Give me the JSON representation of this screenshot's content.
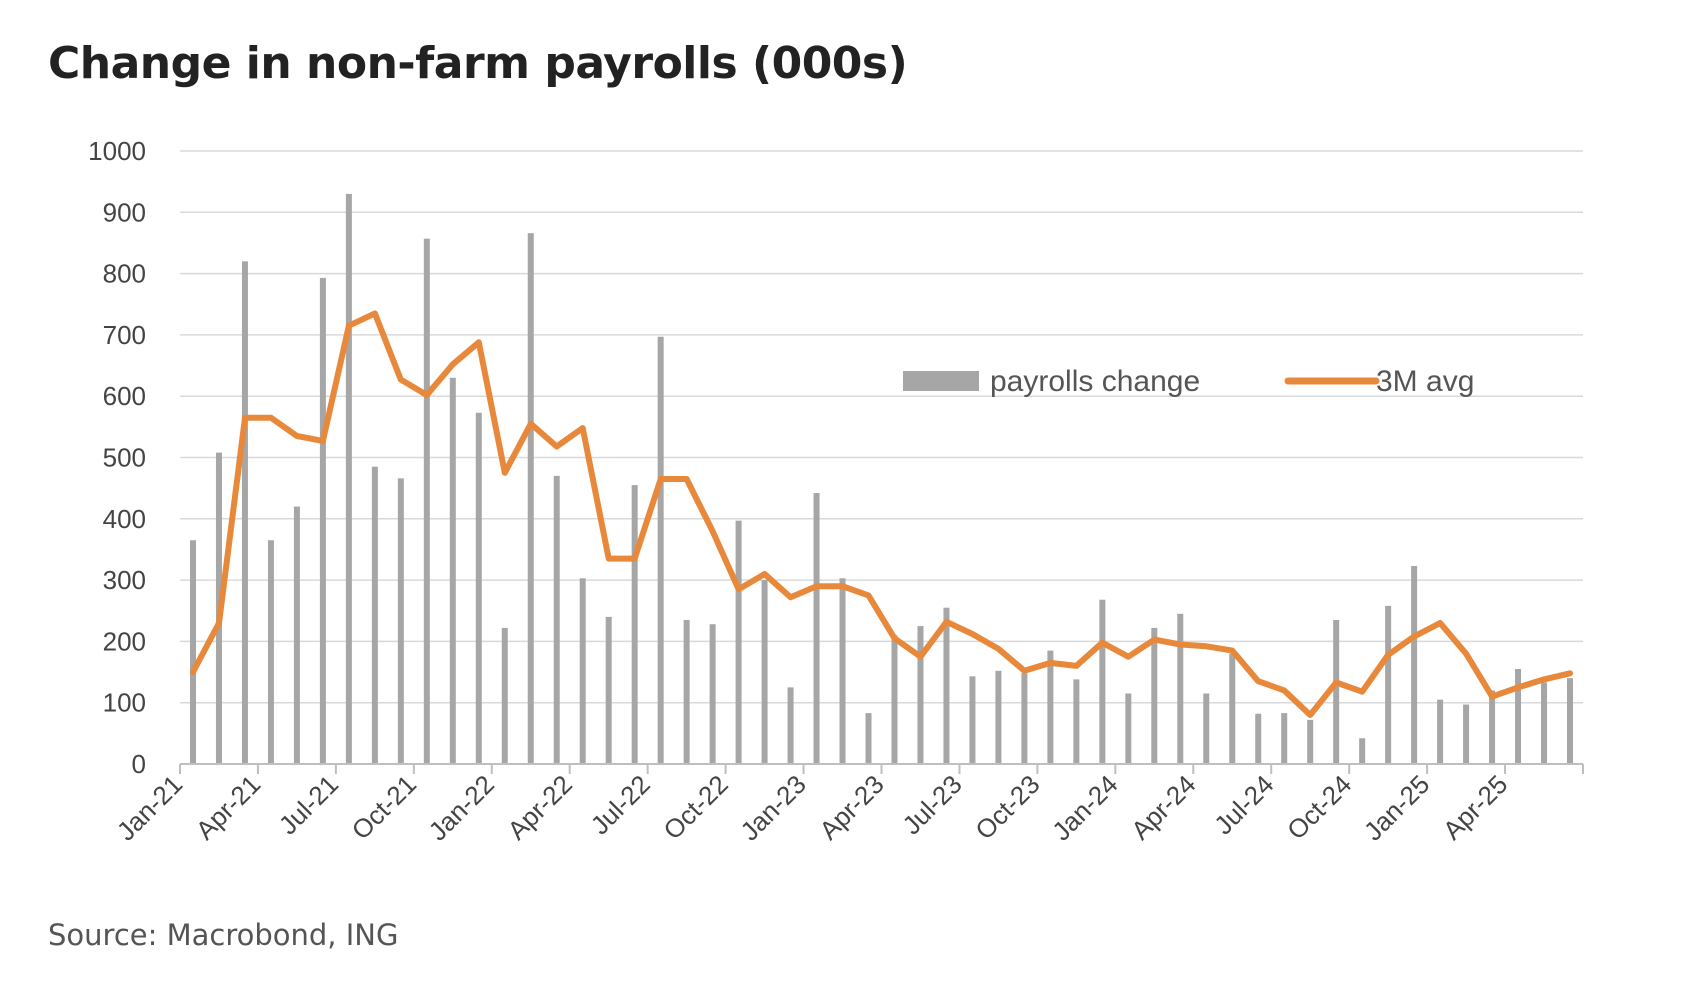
{
  "header": {
    "title": "Change in non-farm payrolls (000s)"
  },
  "footer": {
    "source": "Source: Macrobond, ING"
  },
  "chart_data": {
    "type": "bar",
    "ylim": [
      0,
      1000
    ],
    "yticks": [
      0,
      100,
      200,
      300,
      400,
      500,
      600,
      700,
      800,
      900,
      1000
    ],
    "grid": true,
    "legend_position": "top-right",
    "categories": [
      "Jan-21",
      "Feb-21",
      "Mar-21",
      "Apr-21",
      "May-21",
      "Jun-21",
      "Jul-21",
      "Aug-21",
      "Sep-21",
      "Oct-21",
      "Nov-21",
      "Dec-21",
      "Jan-22",
      "Feb-22",
      "Mar-22",
      "Apr-22",
      "May-22",
      "Jun-22",
      "Jul-22",
      "Aug-22",
      "Sep-22",
      "Oct-22",
      "Nov-22",
      "Dec-22",
      "Jan-23",
      "Feb-23",
      "Mar-23",
      "Apr-23",
      "May-23",
      "Jun-23",
      "Jul-23",
      "Aug-23",
      "Sep-23",
      "Oct-23",
      "Nov-23",
      "Dec-23",
      "Jan-24",
      "Feb-24",
      "Mar-24",
      "Apr-24",
      "May-24",
      "Jun-24",
      "Jul-24",
      "Aug-24",
      "Sep-24",
      "Oct-24",
      "Nov-24",
      "Dec-24",
      "Jan-25",
      "Feb-25",
      "Mar-25",
      "Apr-25",
      "May-25",
      "Jun-25"
    ],
    "tick_labels": [
      "Jan-21",
      "Apr-21",
      "Jul-21",
      "Oct-21",
      "Jan-22",
      "Apr-22",
      "Jul-22",
      "Oct-22",
      "Jan-23",
      "Apr-23",
      "Jul-23",
      "Oct-23",
      "Jan-24",
      "Apr-24",
      "Jul-24",
      "Oct-24",
      "Jan-25",
      "Apr-25"
    ],
    "series": [
      {
        "name": "payrolls change",
        "kind": "bar",
        "color": "#a6a6a6",
        "values": [
          365,
          508,
          820,
          365,
          420,
          793,
          930,
          485,
          466,
          857,
          630,
          573,
          222,
          866,
          470,
          303,
          240,
          455,
          697,
          235,
          228,
          397,
          300,
          125,
          442,
          303,
          83,
          210,
          225,
          255,
          143,
          152,
          148,
          185,
          138,
          268,
          115,
          222,
          245,
          115,
          180,
          82,
          83,
          72,
          235,
          42,
          258,
          323,
          105,
          97,
          120,
          155,
          133,
          140
        ]
      },
      {
        "name": "3M avg",
        "kind": "line",
        "color": "#e8883b",
        "values": [
          150,
          230,
          565,
          565,
          535,
          527,
          715,
          735,
          627,
          602,
          652,
          688,
          475,
          555,
          518,
          548,
          335,
          335,
          465,
          465,
          380,
          285,
          310,
          272,
          290,
          290,
          275,
          205,
          175,
          232,
          212,
          188,
          152,
          165,
          160,
          198,
          175,
          203,
          195,
          192,
          185,
          135,
          120,
          80,
          133,
          118,
          178,
          208,
          230,
          180,
          110,
          125,
          138,
          148
        ]
      }
    ]
  }
}
